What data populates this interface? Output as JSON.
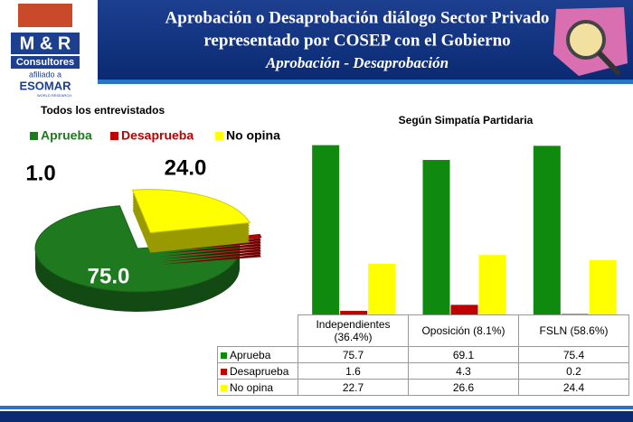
{
  "header": {
    "logo": "M & R",
    "logo_sub": "Consultores",
    "affiliate": "afiliado a",
    "esomar": "ESOMAR",
    "esomar_sub": "WORLD RESEARCH",
    "title_line1": "Aprobación o Desaprobación diálogo Sector Privado",
    "title_line2": "representado por COSEP con el Gobierno",
    "subtitle": "Aprobación - Desaprobación"
  },
  "chart_data": [
    {
      "type": "pie",
      "title": "Todos los entrevistados",
      "categories": [
        "Aprueba",
        "Desaprueba",
        "No opina"
      ],
      "values": [
        75.0,
        1.0,
        24.0
      ],
      "value_labels": [
        "75.0",
        "1.0",
        "24.0"
      ],
      "colors": [
        "#1f7a1f",
        "#c00000",
        "#ffff00"
      ],
      "legend": "top"
    },
    {
      "type": "bar",
      "title": "Según Simpatía Partidaria",
      "categories": [
        "Independientes (36.4%)",
        "Oposición (8.1%)",
        "FSLN (58.6%)"
      ],
      "series": [
        {
          "name": "Aprueba",
          "color": "#0f8a0f",
          "values": [
            75.7,
            69.1,
            75.4
          ]
        },
        {
          "name": "Desaprueba",
          "color": "#c00000",
          "values": [
            1.6,
            4.3,
            0.2
          ]
        },
        {
          "name": "No opina",
          "color": "#ffff00",
          "values": [
            22.7,
            26.6,
            24.4
          ]
        }
      ],
      "ylim": [
        0,
        80
      ],
      "data_table": true
    }
  ]
}
